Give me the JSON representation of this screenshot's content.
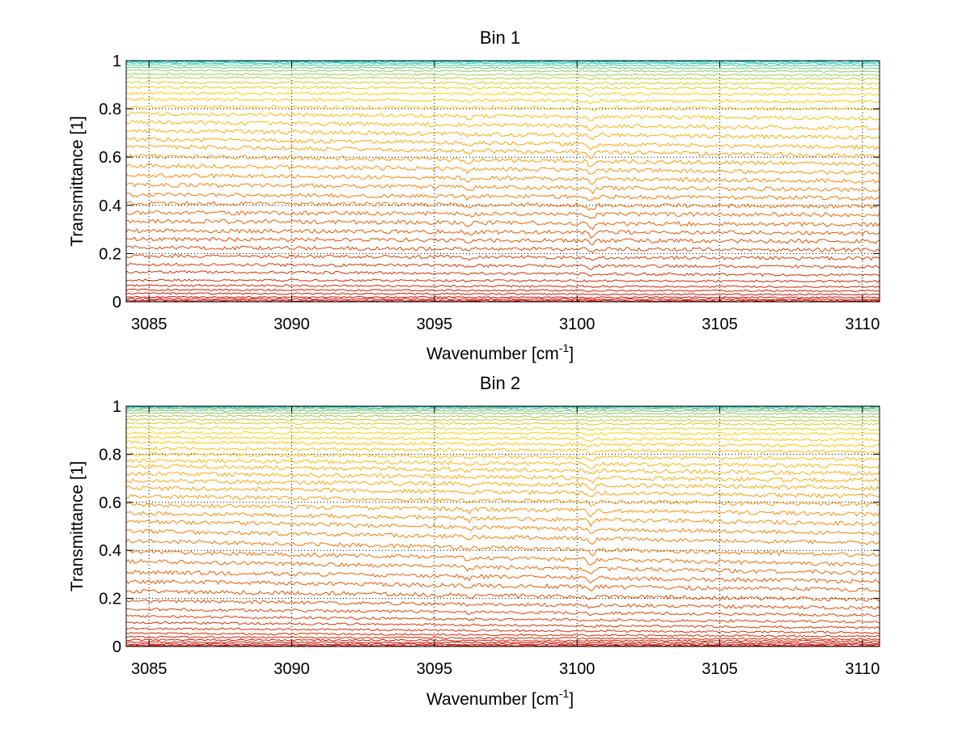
{
  "figure": {
    "background": "#ffffff"
  },
  "chart_data": [
    {
      "type": "line",
      "title": "Bin 1",
      "xlabel": "Wavenumber [cm",
      "xlabel_sup": "-1",
      "xlabel_close": "]",
      "ylabel": "Transmittance [1]",
      "xlim": [
        3084.2,
        3110.6
      ],
      "ylim": [
        0,
        1
      ],
      "xticks": [
        3085,
        3090,
        3095,
        3100,
        3105,
        3110
      ],
      "xtick_labels": [
        "3085",
        "3090",
        "3095",
        "3100",
        "3105",
        "3110"
      ],
      "yticks": [
        0,
        0.2,
        0.4,
        0.6,
        0.8,
        1
      ],
      "ytick_labels": [
        "0",
        "0.2",
        "0.4",
        "0.6",
        "0.8",
        "1"
      ],
      "grid": true,
      "absorption_features": [
        3096.2,
        3100.5
      ],
      "series_count": 40,
      "series_start_values": [
        0.0,
        0.005,
        0.012,
        0.02,
        0.035,
        0.05,
        0.068,
        0.09,
        0.125,
        0.155,
        0.19,
        0.225,
        0.26,
        0.295,
        0.335,
        0.37,
        0.41,
        0.445,
        0.485,
        0.525,
        0.565,
        0.605,
        0.645,
        0.675,
        0.71,
        0.745,
        0.78,
        0.81,
        0.84,
        0.865,
        0.89,
        0.91,
        0.93,
        0.945,
        0.96,
        0.972,
        0.982,
        0.99,
        0.995,
        0.999
      ],
      "series_end_values": [
        0.0,
        0.004,
        0.01,
        0.018,
        0.03,
        0.045,
        0.062,
        0.085,
        0.11,
        0.145,
        0.18,
        0.215,
        0.25,
        0.285,
        0.32,
        0.36,
        0.395,
        0.43,
        0.465,
        0.5,
        0.535,
        0.57,
        0.605,
        0.64,
        0.68,
        0.72,
        0.76,
        0.8,
        0.83,
        0.86,
        0.885,
        0.905,
        0.925,
        0.94,
        0.955,
        0.968,
        0.98,
        0.988,
        0.994,
        0.999
      ],
      "colormap": [
        "#c80000",
        "#dc3c00",
        "#ff8c00",
        "#ffd200",
        "#00c8dc"
      ]
    },
    {
      "type": "line",
      "title": "Bin 2",
      "xlabel": "Wavenumber [cm",
      "xlabel_sup": "-1",
      "xlabel_close": "]",
      "ylabel": "Transmittance [1]",
      "xlim": [
        3084.2,
        3110.6
      ],
      "ylim": [
        0,
        1
      ],
      "xticks": [
        3085,
        3090,
        3095,
        3100,
        3105,
        3110
      ],
      "xtick_labels": [
        "3085",
        "3090",
        "3095",
        "3100",
        "3105",
        "3110"
      ],
      "yticks": [
        0,
        0.2,
        0.4,
        0.6,
        0.8,
        1
      ],
      "ytick_labels": [
        "0",
        "0.2",
        "0.4",
        "0.6",
        "0.8",
        "1"
      ],
      "grid": true,
      "absorption_features": [
        3096.2,
        3100.5
      ],
      "series_count": 44,
      "series_start_values": [
        0.0,
        0.004,
        0.01,
        0.018,
        0.028,
        0.04,
        0.055,
        0.075,
        0.1,
        0.125,
        0.155,
        0.19,
        0.23,
        0.27,
        0.31,
        0.355,
        0.395,
        0.44,
        0.48,
        0.52,
        0.555,
        0.59,
        0.625,
        0.66,
        0.69,
        0.72,
        0.75,
        0.775,
        0.8,
        0.825,
        0.85,
        0.87,
        0.89,
        0.91,
        0.93,
        0.945,
        0.96,
        0.972,
        0.982,
        0.99,
        0.995,
        0.998,
        1.0,
        1.0
      ],
      "series_end_values": [
        0.0,
        0.003,
        0.008,
        0.014,
        0.022,
        0.03,
        0.042,
        0.058,
        0.078,
        0.102,
        0.13,
        0.16,
        0.195,
        0.235,
        0.27,
        0.305,
        0.34,
        0.38,
        0.43,
        0.47,
        0.51,
        0.55,
        0.59,
        0.625,
        0.66,
        0.69,
        0.72,
        0.75,
        0.78,
        0.81,
        0.835,
        0.86,
        0.885,
        0.905,
        0.925,
        0.94,
        0.955,
        0.968,
        0.98,
        0.988,
        0.994,
        0.998,
        1.0,
        1.0
      ],
      "colormap": [
        "#c80000",
        "#e64600",
        "#ff9600",
        "#ffd200",
        "#00b4dc"
      ]
    }
  ]
}
